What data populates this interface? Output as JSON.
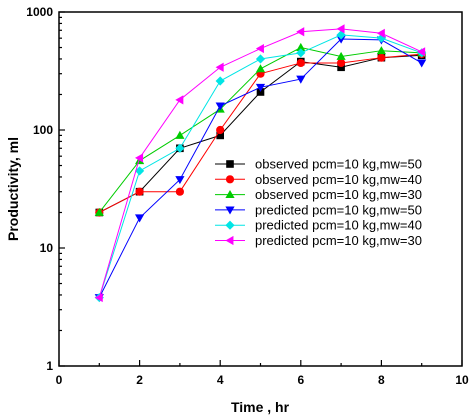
{
  "chart_data": {
    "type": "line",
    "xlabel": "Time , hr",
    "ylabel": "Productivity, ml",
    "xlim": [
      0,
      10
    ],
    "ylim": [
      1,
      1000
    ],
    "yscale": "log",
    "x_ticks": [
      "0",
      "2",
      "4",
      "6",
      "8",
      "10"
    ],
    "y_ticks": [
      "1",
      "10",
      "100",
      "1000"
    ],
    "grid": false,
    "legend_position": "center-right",
    "series": [
      {
        "name": "observed  pcm=10 kg,mw=50",
        "color": "#000000",
        "marker": "square",
        "x": [
          1,
          2,
          3,
          4,
          5,
          6,
          7,
          8,
          9
        ],
        "y": [
          20,
          30,
          70,
          90,
          210,
          380,
          340,
          410,
          430
        ]
      },
      {
        "name": "observed  pcm=10 kg,mw=40",
        "color": "#ff0000",
        "marker": "circle",
        "x": [
          1,
          2,
          3,
          4,
          5,
          6,
          7,
          8,
          9
        ],
        "y": [
          20,
          30,
          30,
          100,
          300,
          370,
          370,
          410,
          440
        ]
      },
      {
        "name": "observed  pcm=10 kg,mw=30",
        "color": "#00cc00",
        "marker": "triangle-up",
        "x": [
          1,
          2,
          3,
          4,
          5,
          6,
          7,
          8,
          9
        ],
        "y": [
          20,
          55,
          90,
          150,
          330,
          500,
          420,
          470,
          450
        ]
      },
      {
        "name": "predicted  pcm=10 kg,mw=50",
        "color": "#0000ff",
        "marker": "triangle-down",
        "x": [
          1,
          2,
          3,
          4,
          5,
          6,
          7,
          8,
          9
        ],
        "y": [
          3.8,
          18,
          38,
          160,
          230,
          270,
          590,
          580,
          370
        ]
      },
      {
        "name": "predicted  pcm=10 kg,mw=40",
        "color": "#00e5e5",
        "marker": "diamond",
        "x": [
          1,
          2,
          3,
          4,
          5,
          6,
          7,
          8,
          9
        ],
        "y": [
          3.8,
          45,
          70,
          260,
          400,
          450,
          640,
          600,
          450
        ]
      },
      {
        "name": "predicted  pcm=10 kg,mw=30",
        "color": "#ff00ff",
        "marker": "triangle-left",
        "x": [
          1,
          2,
          3,
          4,
          5,
          6,
          7,
          8,
          9
        ],
        "y": [
          3.8,
          58,
          180,
          340,
          490,
          680,
          720,
          660,
          460
        ]
      }
    ]
  }
}
